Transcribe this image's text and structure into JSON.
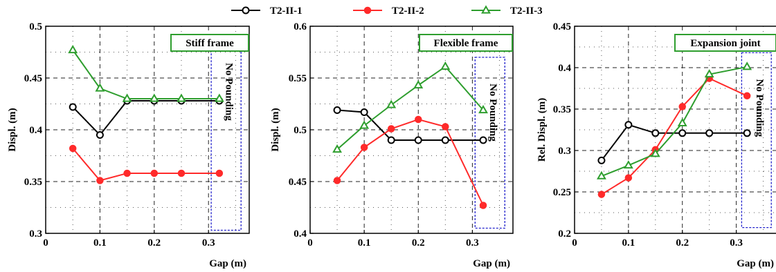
{
  "colors": {
    "series": [
      "#000000",
      "#ff2a2a",
      "#2e9e2e"
    ],
    "annotation_box": "#2222cc",
    "title_box": "#2e9e2e"
  },
  "chart_data": [
    {
      "type": "line",
      "title": "Stiff frame",
      "xlabel": "Gap (m)",
      "ylabel": "Displ. (m)",
      "xlim": [
        0,
        0.375
      ],
      "ylim": [
        0.3,
        0.5
      ],
      "xticks": [
        "0",
        "0.1",
        "0.2",
        "0.3"
      ],
      "xtick_values": [
        0,
        0.1,
        0.2,
        0.3
      ],
      "yticks": [
        "0.3",
        "0.35",
        "0.4",
        "0.45",
        "0.5"
      ],
      "ytick_values": [
        0.3,
        0.35,
        0.4,
        0.45,
        0.5
      ],
      "x": [
        0.05,
        0.1,
        0.15,
        0.2,
        0.25,
        0.32
      ],
      "series": [
        {
          "name": "T2-II-1",
          "marker": "circle-open",
          "values": [
            0.422,
            0.395,
            0.428,
            0.428,
            0.428,
            0.428
          ]
        },
        {
          "name": "T2-II-2",
          "marker": "circle-filled",
          "values": [
            0.382,
            0.351,
            0.358,
            0.358,
            0.358,
            0.358
          ]
        },
        {
          "name": "T2-II-3",
          "marker": "triangle-open",
          "values": [
            0.477,
            0.44,
            0.43,
            0.43,
            0.43,
            0.43
          ]
        }
      ],
      "annotation": {
        "text": "No Pounding",
        "x_range": [
          0.305,
          0.36
        ],
        "y_range": [
          0.303,
          0.49
        ]
      },
      "grid": true,
      "title_placement": "top-right"
    },
    {
      "type": "line",
      "title": "Flexible frame",
      "xlabel": "Gap (m)",
      "ylabel": "Displ. (m)",
      "xlim": [
        0,
        0.375
      ],
      "ylim": [
        0.4,
        0.6
      ],
      "xticks": [
        "0",
        "0.1",
        "0.2",
        "0.3"
      ],
      "xtick_values": [
        0,
        0.1,
        0.2,
        0.3
      ],
      "yticks": [
        "0.4",
        "0.45",
        "0.5",
        "0.55",
        "0.6"
      ],
      "ytick_values": [
        0.4,
        0.45,
        0.5,
        0.55,
        0.6
      ],
      "x": [
        0.05,
        0.1,
        0.15,
        0.2,
        0.25,
        0.32
      ],
      "series": [
        {
          "name": "T2-II-1",
          "marker": "circle-open",
          "values": [
            0.519,
            0.517,
            0.49,
            0.49,
            0.49,
            0.49
          ]
        },
        {
          "name": "T2-II-2",
          "marker": "circle-filled",
          "values": [
            0.451,
            0.483,
            0.501,
            0.51,
            0.503,
            0.427
          ]
        },
        {
          "name": "T2-II-3",
          "marker": "triangle-open",
          "values": [
            0.481,
            0.504,
            0.524,
            0.543,
            0.561,
            0.519
          ]
        }
      ],
      "annotation": {
        "text": "No Pounding",
        "x_range": [
          0.305,
          0.36
        ],
        "y_range": [
          0.405,
          0.57
        ]
      },
      "grid": true,
      "title_placement": "top-right"
    },
    {
      "type": "line",
      "title": "Expansion joint",
      "xlabel": "Gap (m)",
      "ylabel": "Rel. Displ. (m)",
      "xlim": [
        0,
        0.375
      ],
      "ylim": [
        0.2,
        0.45
      ],
      "xticks": [
        "0",
        "0.1",
        "0.2",
        "0.3"
      ],
      "xtick_values": [
        0,
        0.1,
        0.2,
        0.3
      ],
      "yticks": [
        "0.2",
        "0.25",
        "0.3",
        "0.35",
        "0.4",
        "0.45"
      ],
      "ytick_values": [
        0.2,
        0.25,
        0.3,
        0.35,
        0.4,
        0.45
      ],
      "x": [
        0.05,
        0.1,
        0.15,
        0.2,
        0.25,
        0.32
      ],
      "series": [
        {
          "name": "T2-II-1",
          "marker": "circle-open",
          "values": [
            0.288,
            0.331,
            0.321,
            0.321,
            0.321,
            0.321
          ]
        },
        {
          "name": "T2-II-2",
          "marker": "circle-filled",
          "values": [
            0.247,
            0.267,
            0.301,
            0.353,
            0.387,
            0.366
          ]
        },
        {
          "name": "T2-II-3",
          "marker": "triangle-open",
          "values": [
            0.269,
            0.282,
            0.296,
            0.333,
            0.392,
            0.401
          ]
        }
      ],
      "annotation": {
        "text": "No Pounding",
        "x_range": [
          0.31,
          0.365
        ],
        "y_range": [
          0.207,
          0.418
        ]
      },
      "grid": true,
      "title_placement": "top-right"
    }
  ],
  "legend": {
    "placement": "top-center",
    "entries": [
      {
        "label": "T2-II-1",
        "marker": "circle-open"
      },
      {
        "label": "T2-II-2",
        "marker": "circle-filled"
      },
      {
        "label": "T2-II-3",
        "marker": "triangle-open"
      }
    ]
  }
}
